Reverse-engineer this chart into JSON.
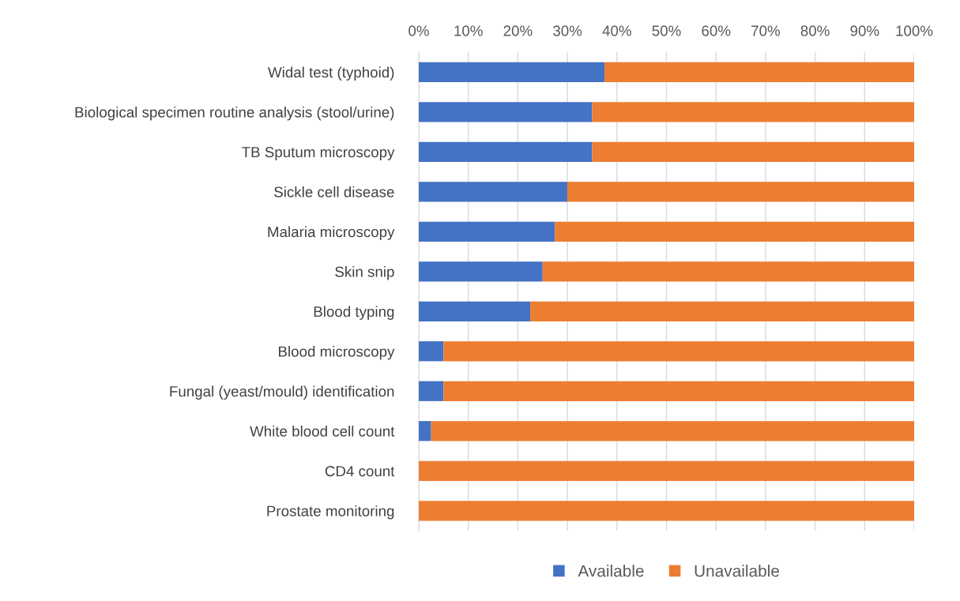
{
  "chart_data": {
    "type": "bar",
    "orientation": "horizontal",
    "stacked": true,
    "categories": [
      "Widal test (typhoid)",
      "Biological specimen routine analysis (stool/urine)",
      "TB Sputum microscopy",
      "Sickle cell disease",
      "Malaria microscopy",
      "Skin snip",
      "Blood typing",
      "Blood microscopy",
      "Fungal (yeast/mould) identification",
      "White blood cell count",
      "CD4 count",
      "Prostate monitoring"
    ],
    "series": [
      {
        "name": "Available",
        "color": "#4472c4",
        "values": [
          37.5,
          35,
          35,
          30,
          27.5,
          25,
          22.5,
          5,
          5,
          2.5,
          0,
          0
        ]
      },
      {
        "name": "Unavailable",
        "color": "#ed7d31",
        "values": [
          62.5,
          65,
          65,
          70,
          72.5,
          75,
          77.5,
          95,
          95,
          97.5,
          100,
          100
        ]
      }
    ],
    "xlim": [
      0,
      100
    ],
    "xticks": [
      {
        "value": 0,
        "label": "0%"
      },
      {
        "value": 10,
        "label": "10%"
      },
      {
        "value": 20,
        "label": "20%"
      },
      {
        "value": 30,
        "label": "30%"
      },
      {
        "value": 40,
        "label": "40%"
      },
      {
        "value": 50,
        "label": "50%"
      },
      {
        "value": 60,
        "label": "60%"
      },
      {
        "value": 70,
        "label": "70%"
      },
      {
        "value": 80,
        "label": "80%"
      },
      {
        "value": 90,
        "label": "90%"
      },
      {
        "value": 100,
        "label": "100%"
      }
    ],
    "grid": "x",
    "legend": "bottom"
  }
}
